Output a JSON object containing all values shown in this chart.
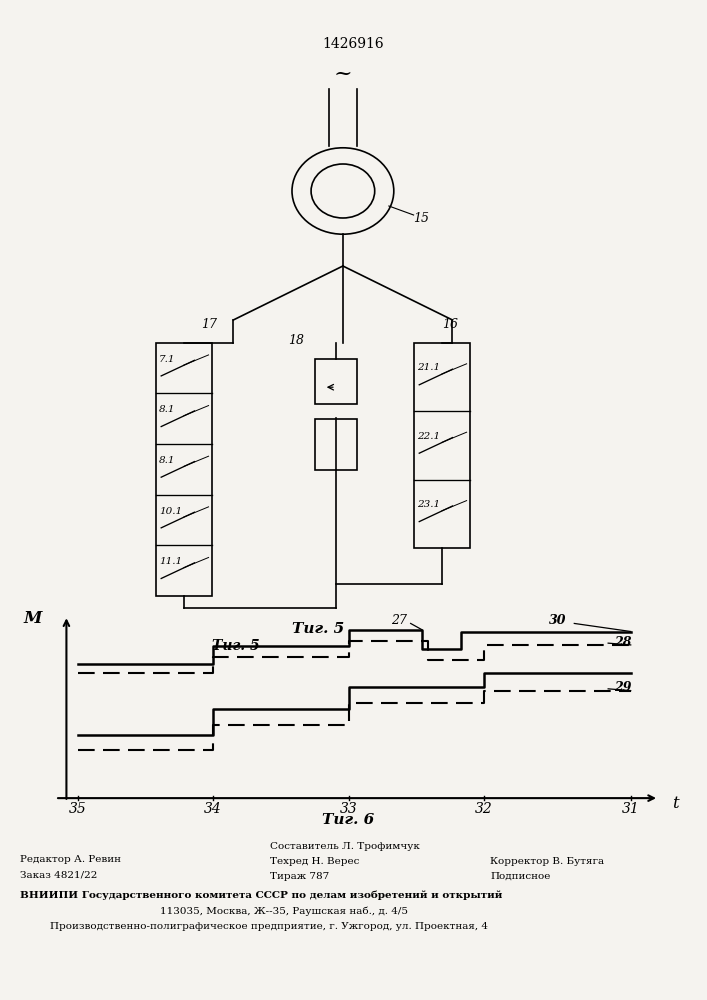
{
  "title": "1426916",
  "bg_color": "#f5f3ef",
  "fig5_label": "Τиг. 5",
  "fig6_label": "Τиг. 6",
  "patent_line1_col1": "Редактор А. Ревин",
  "patent_line2_col1": "Заказ 4821/22",
  "patent_line1_col2": "Составитель Л. Трофимчук",
  "patent_line2_col2": "Техред Н. Верес",
  "patent_line3_col2": "Тираж 787",
  "patent_line1_col3": "Корректор В. Бутяга",
  "patent_line2_col3": "Подписное",
  "patent_org": "ВНИИПИ Государственного комитета СССР по делам изобретений и открытий",
  "patent_addr1": "113035, Москва, Ж--35, Раушская наб., д. 4/5",
  "patent_addr2": "Производственно-полиграфическое предприятие, г. Ужгород, ул. Проектная, 4",
  "labels_left": [
    "7.1",
    "8.1",
    "8.1",
    "10.1",
    "11.1"
  ],
  "labels_right": [
    "21.1",
    "22.1",
    "23.1"
  ],
  "label_17": "17",
  "label_18": "18",
  "label_16": "16",
  "label_15": "15",
  "label_27": "27",
  "label_28": "28",
  "label_29": "29",
  "label_30": "30",
  "axis_x_label": "t",
  "axis_y_label": "M",
  "xtick_labels": [
    "35",
    "34",
    "33",
    "32",
    "31"
  ],
  "line_color": "#000000"
}
